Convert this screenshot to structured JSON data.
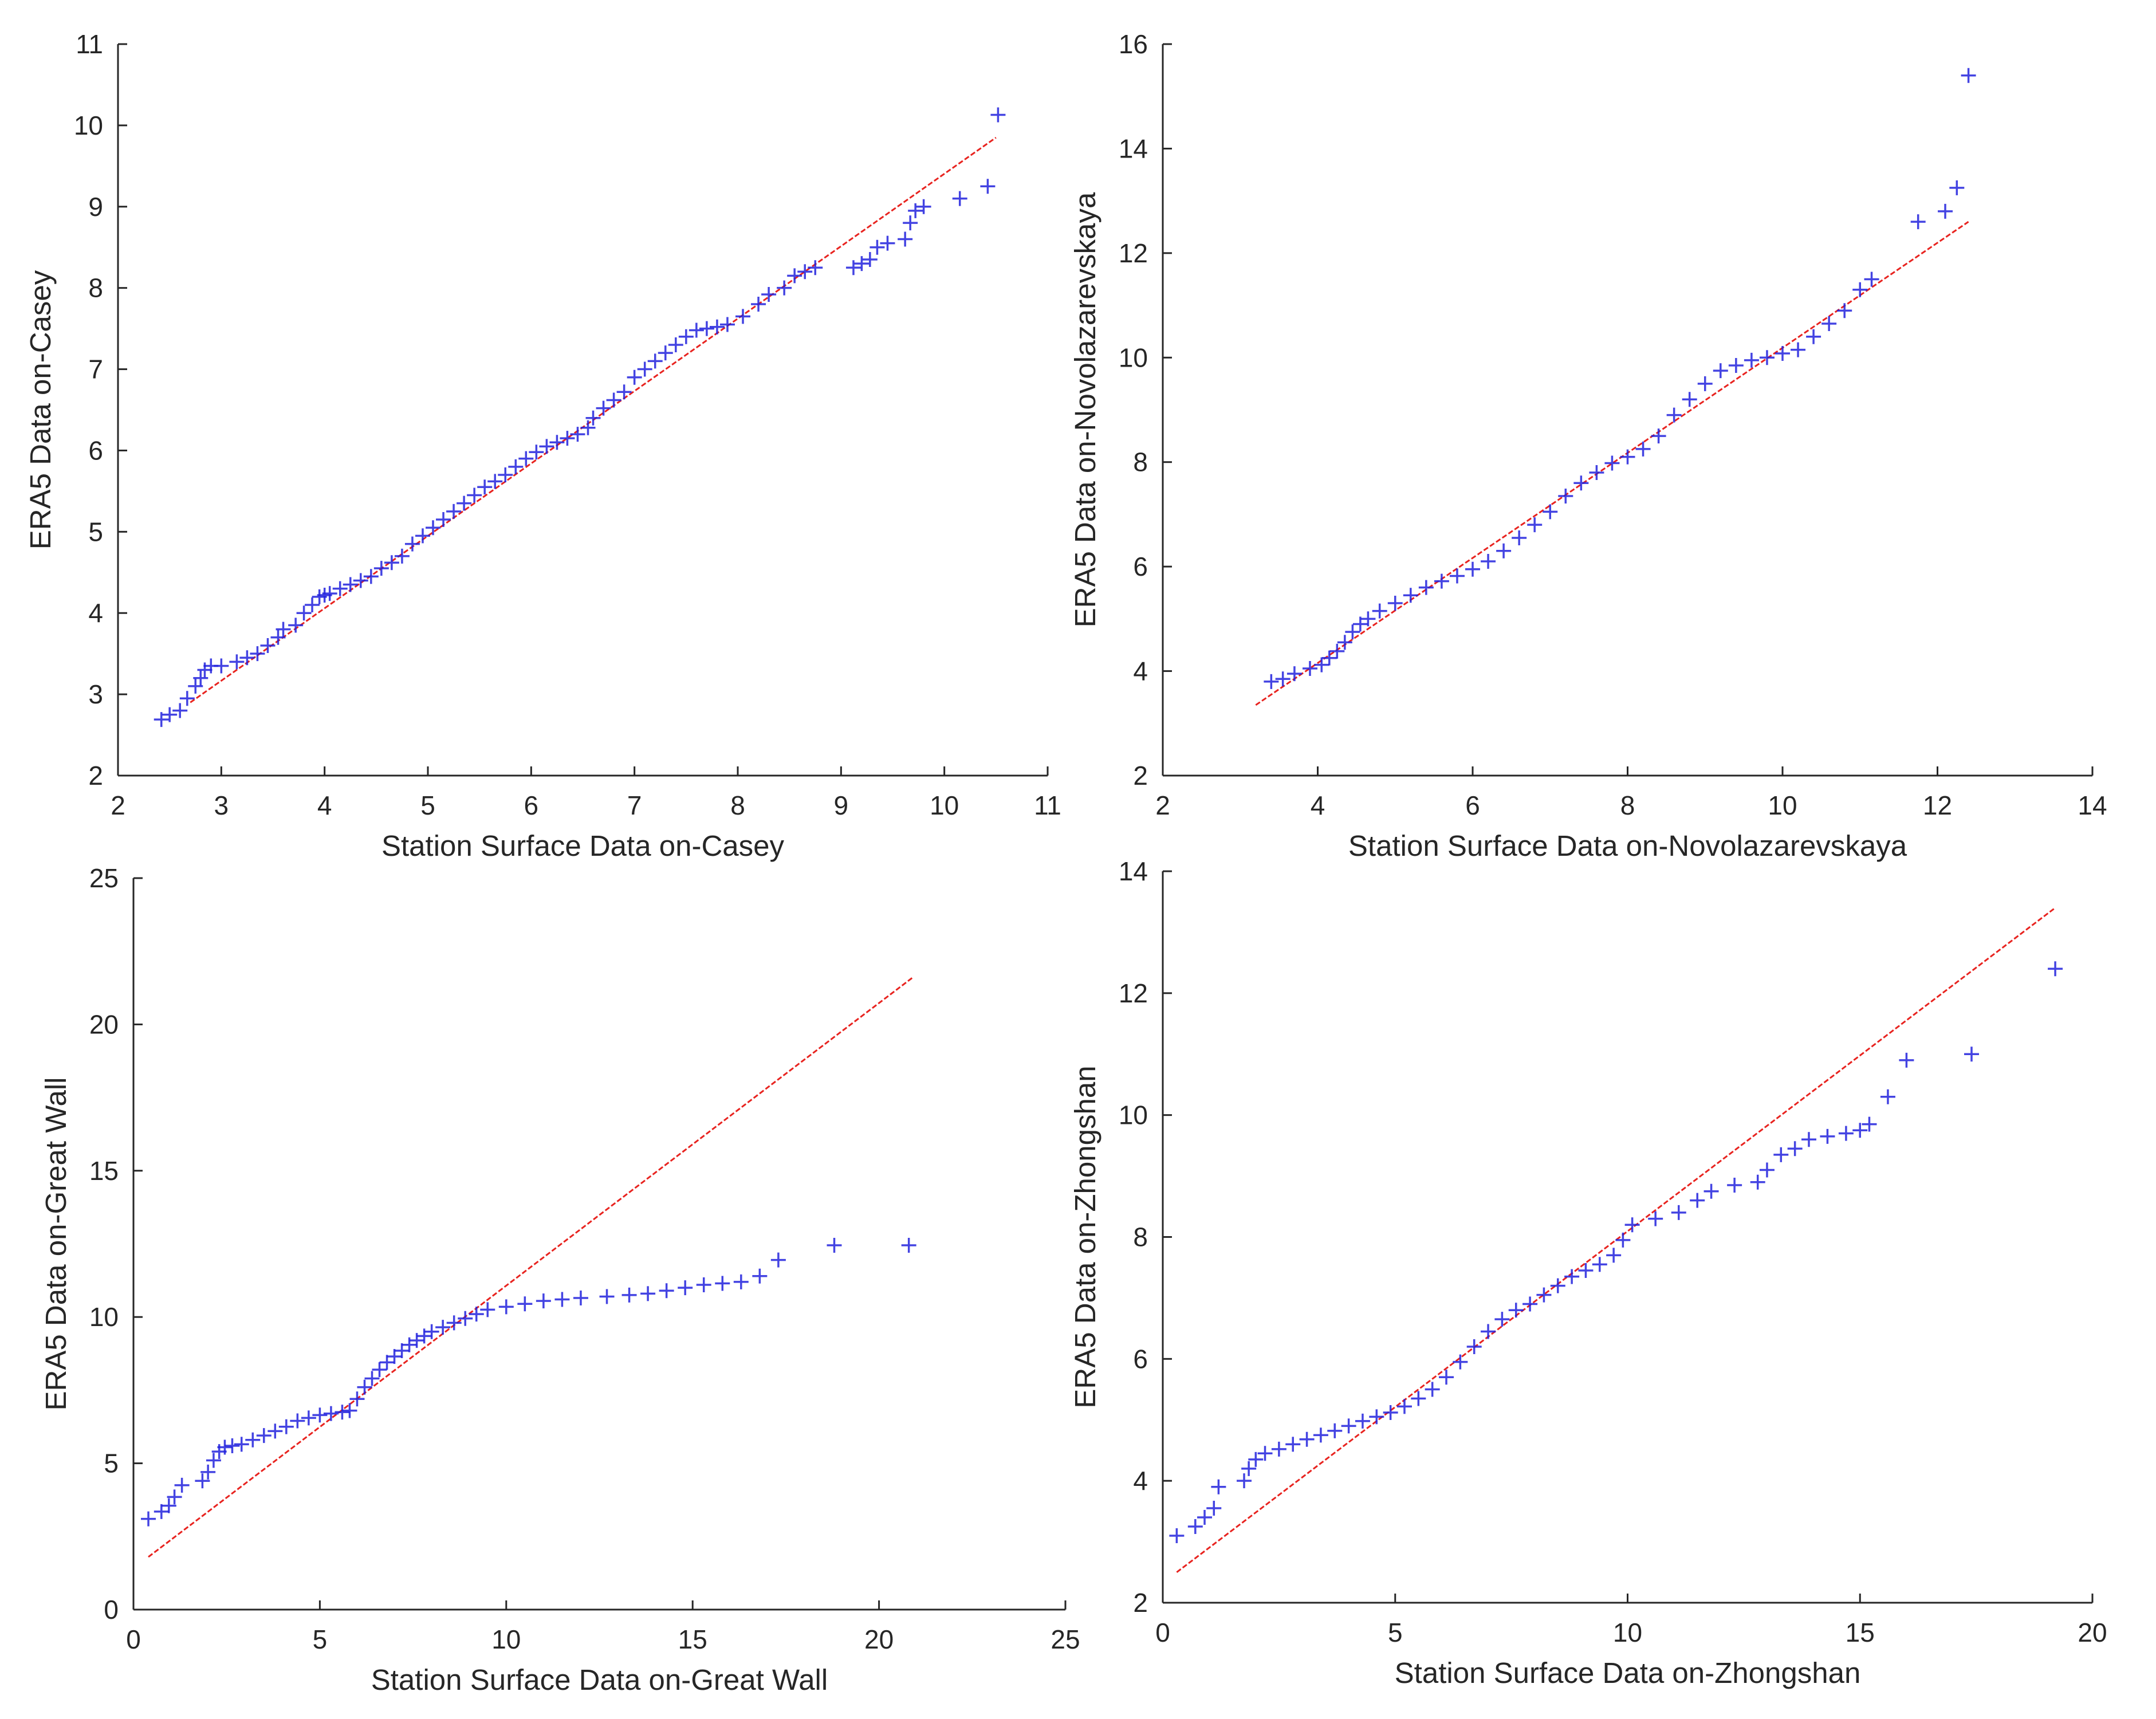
{
  "colors": {
    "points": "#2222dd",
    "reference_line": "#e8231f",
    "axes": "#262626",
    "background": "#ffffff"
  },
  "marker": "plus",
  "chart_data": [
    {
      "type": "scatter",
      "subtype": "qq-plot",
      "title": "",
      "xlabel": "Station Surface Data on-Casey",
      "ylabel": "ERA5 Data on-Casey",
      "xlim": [
        2,
        11
      ],
      "ylim": [
        2,
        11
      ],
      "xticks": [
        2,
        3,
        4,
        5,
        6,
        7,
        8,
        9,
        10,
        11
      ],
      "yticks": [
        2,
        3,
        4,
        5,
        6,
        7,
        8,
        9,
        10,
        11
      ],
      "grid": false,
      "reference_line": [
        [
          2.7,
          2.9
        ],
        [
          10.5,
          9.85
        ]
      ],
      "series": [
        {
          "x": [
            2.42,
            2.5,
            2.6,
            2.67,
            2.75,
            2.8,
            2.84,
            2.9,
            3.0,
            3.15,
            3.25,
            3.35,
            3.45,
            3.55,
            3.6,
            3.72,
            3.8,
            3.88,
            3.95,
            4.0,
            4.05,
            4.15,
            4.25,
            4.35,
            4.45,
            4.55,
            4.65,
            4.75,
            4.85,
            4.95,
            5.05,
            5.15,
            5.25,
            5.35,
            5.45,
            5.55,
            5.65,
            5.75,
            5.85,
            5.95,
            6.05,
            6.15,
            6.25,
            6.35,
            6.45,
            6.55,
            6.6,
            6.7,
            6.8,
            6.9,
            7.0,
            7.1,
            7.2,
            7.3,
            7.4,
            7.5,
            7.6,
            7.7,
            7.8,
            7.9,
            8.05,
            8.2,
            8.3,
            8.45,
            8.55,
            8.65,
            8.75,
            9.12,
            9.2,
            9.28,
            9.35,
            9.45,
            9.62,
            9.67,
            9.72,
            9.8,
            10.15,
            10.42,
            10.52
          ],
          "y": [
            2.69,
            2.75,
            2.8,
            2.95,
            3.1,
            3.2,
            3.3,
            3.35,
            3.35,
            3.4,
            3.45,
            3.5,
            3.6,
            3.7,
            3.8,
            3.85,
            4.0,
            4.1,
            4.2,
            4.22,
            4.24,
            4.3,
            4.35,
            4.4,
            4.45,
            4.55,
            4.62,
            4.7,
            4.85,
            4.95,
            5.05,
            5.15,
            5.25,
            5.35,
            5.45,
            5.55,
            5.62,
            5.7,
            5.8,
            5.9,
            5.98,
            6.05,
            6.1,
            6.15,
            6.2,
            6.28,
            6.4,
            6.52,
            6.62,
            6.72,
            6.9,
            7.0,
            7.1,
            7.2,
            7.3,
            7.4,
            7.48,
            7.5,
            7.52,
            7.55,
            7.65,
            7.8,
            7.92,
            8.0,
            8.15,
            8.2,
            8.25,
            8.25,
            8.3,
            8.35,
            8.5,
            8.55,
            8.6,
            8.8,
            8.95,
            9.0,
            9.1,
            9.25,
            10.13
          ]
        }
      ]
    },
    {
      "type": "scatter",
      "subtype": "qq-plot",
      "title": "",
      "xlabel": "Station Surface Data on-Novolazarevskaya",
      "ylabel": "ERA5 Data on-Novolazarevskaya",
      "xlim": [
        2,
        14
      ],
      "ylim": [
        2,
        16
      ],
      "xticks": [
        2,
        4,
        6,
        8,
        10,
        12,
        14
      ],
      "yticks": [
        2,
        4,
        6,
        8,
        10,
        12,
        14,
        16
      ],
      "grid": false,
      "reference_line": [
        [
          3.2,
          3.35
        ],
        [
          12.4,
          12.6
        ]
      ],
      "series": [
        {
          "x": [
            3.4,
            3.55,
            3.7,
            3.9,
            4.05,
            4.15,
            4.25,
            4.35,
            4.45,
            4.55,
            4.65,
            4.8,
            5.0,
            5.2,
            5.4,
            5.6,
            5.8,
            6.0,
            6.2,
            6.4,
            6.6,
            6.8,
            7.0,
            7.2,
            7.4,
            7.6,
            7.8,
            8.0,
            8.2,
            8.4,
            8.6,
            8.8,
            9.0,
            9.2,
            9.4,
            9.6,
            9.8,
            10.0,
            10.2,
            10.4,
            10.6,
            10.8,
            11.0,
            11.15,
            11.75,
            12.1,
            12.25,
            12.4
          ],
          "y": [
            3.8,
            3.85,
            3.95,
            4.05,
            4.12,
            4.25,
            4.38,
            4.55,
            4.75,
            4.9,
            5.0,
            5.15,
            5.3,
            5.45,
            5.6,
            5.72,
            5.82,
            5.95,
            6.1,
            6.3,
            6.55,
            6.8,
            7.05,
            7.35,
            7.6,
            7.8,
            7.98,
            8.1,
            8.25,
            8.5,
            8.9,
            9.2,
            9.5,
            9.75,
            9.85,
            9.95,
            10.0,
            10.08,
            10.15,
            10.4,
            10.65,
            10.9,
            11.3,
            11.5,
            12.6,
            12.8,
            13.25,
            15.4
          ]
        }
      ]
    },
    {
      "type": "scatter",
      "subtype": "qq-plot",
      "title": "",
      "xlabel": "Station Surface Data on-Great Wall",
      "ylabel": "ERA5 Data on-Great Wall",
      "xlim": [
        0,
        25
      ],
      "ylim": [
        0,
        25
      ],
      "xticks": [
        0,
        5,
        10,
        15,
        20,
        25
      ],
      "yticks": [
        0,
        5,
        10,
        15,
        20,
        25
      ],
      "grid": false,
      "reference_line": [
        [
          0.4,
          1.8
        ],
        [
          20.9,
          21.6
        ]
      ],
      "series": [
        {
          "x": [
            0.4,
            0.75,
            0.95,
            1.1,
            1.3,
            1.85,
            2.0,
            2.15,
            2.3,
            2.45,
            2.65,
            2.9,
            3.2,
            3.5,
            3.8,
            4.1,
            4.4,
            4.7,
            5.0,
            5.3,
            5.6,
            5.8,
            6.0,
            6.2,
            6.4,
            6.6,
            6.8,
            7.0,
            7.2,
            7.4,
            7.6,
            7.8,
            8.0,
            8.3,
            8.6,
            8.9,
            9.2,
            9.5,
            10.0,
            10.5,
            11.0,
            11.5,
            12.0,
            12.7,
            13.3,
            13.8,
            14.3,
            14.8,
            15.3,
            15.8,
            16.3,
            16.8,
            17.3,
            18.8,
            20.8
          ],
          "y": [
            3.1,
            3.35,
            3.55,
            3.85,
            4.25,
            4.4,
            4.7,
            5.1,
            5.4,
            5.55,
            5.6,
            5.65,
            5.8,
            5.95,
            6.1,
            6.25,
            6.45,
            6.55,
            6.65,
            6.7,
            6.75,
            6.8,
            7.2,
            7.6,
            7.9,
            8.2,
            8.45,
            8.65,
            8.85,
            9.05,
            9.2,
            9.35,
            9.5,
            9.65,
            9.8,
            9.95,
            10.1,
            10.25,
            10.35,
            10.45,
            10.55,
            10.6,
            10.65,
            10.7,
            10.75,
            10.8,
            10.9,
            11.0,
            11.1,
            11.15,
            11.2,
            11.4,
            11.95,
            12.45,
            12.45
          ]
        }
      ]
    },
    {
      "type": "scatter",
      "subtype": "qq-plot",
      "title": "",
      "xlabel": "Station Surface Data on-Zhongshan",
      "ylabel": "ERA5 Data on-Zhongshan",
      "xlim": [
        0,
        20
      ],
      "ylim": [
        2,
        14
      ],
      "xticks": [
        0,
        5,
        10,
        15,
        20
      ],
      "yticks": [
        2,
        4,
        6,
        8,
        10,
        12,
        14
      ],
      "grid": false,
      "reference_line": [
        [
          0.3,
          2.5
        ],
        [
          19.2,
          13.4
        ]
      ],
      "series": [
        {
          "x": [
            0.3,
            0.7,
            0.9,
            1.1,
            1.2,
            1.75,
            1.85,
            2.0,
            2.2,
            2.5,
            2.8,
            3.1,
            3.4,
            3.7,
            4.0,
            4.3,
            4.6,
            4.9,
            5.2,
            5.5,
            5.8,
            6.1,
            6.4,
            6.7,
            7.0,
            7.3,
            7.6,
            7.9,
            8.2,
            8.5,
            8.8,
            9.1,
            9.4,
            9.7,
            9.9,
            10.1,
            10.6,
            11.1,
            11.5,
            11.8,
            12.3,
            12.8,
            13.0,
            13.3,
            13.6,
            13.9,
            14.3,
            14.7,
            15.0,
            15.2,
            15.6,
            16.0,
            17.4,
            19.2
          ],
          "y": [
            3.1,
            3.25,
            3.4,
            3.55,
            3.9,
            4.0,
            4.2,
            4.35,
            4.45,
            4.52,
            4.6,
            4.68,
            4.75,
            4.82,
            4.9,
            4.98,
            5.05,
            5.12,
            5.22,
            5.35,
            5.5,
            5.7,
            5.95,
            6.2,
            6.45,
            6.65,
            6.8,
            6.9,
            7.05,
            7.2,
            7.35,
            7.45,
            7.55,
            7.7,
            7.95,
            8.2,
            8.3,
            8.4,
            8.6,
            8.75,
            8.85,
            8.9,
            9.1,
            9.35,
            9.45,
            9.6,
            9.65,
            9.7,
            9.75,
            9.85,
            10.3,
            10.9,
            11.0,
            12.4
          ]
        }
      ]
    }
  ]
}
